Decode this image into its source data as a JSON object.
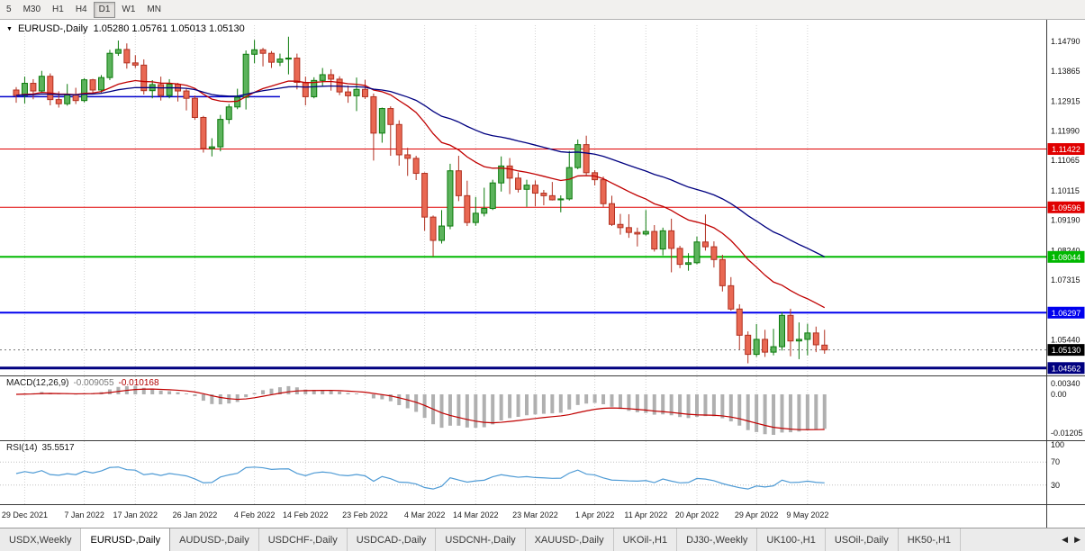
{
  "toolbar": {
    "timeframes": [
      {
        "label": "5",
        "active": false
      },
      {
        "label": "M30",
        "active": false
      },
      {
        "label": "H1",
        "active": false
      },
      {
        "label": "H4",
        "active": false
      },
      {
        "label": "D1",
        "active": true
      },
      {
        "label": "W1",
        "active": false
      },
      {
        "label": "MN",
        "active": false
      }
    ]
  },
  "chart_header": {
    "dropdown_icon": "▼",
    "symbol_label": "EURUSD-,Daily",
    "ohlc": "1.05280 1.05761 1.05013 1.05130"
  },
  "indicators": {
    "macd": {
      "label": "MACD(12,26,9)",
      "value_main": "-0.009055",
      "value_signal": "-0.010168"
    },
    "rsi": {
      "label": "RSI(14)",
      "value": "35.5517"
    }
  },
  "colors": {
    "up_fill": "#5cb35c",
    "up_border": "#0c7a0c",
    "down_fill": "#e96853",
    "down_border": "#b03020",
    "grid": "#d4d4d4",
    "macd_hist": "#b0b0b0",
    "macd_signal": "#c00000",
    "rsi_line": "#4f9bd5",
    "rsi_level": "#c0c0c0"
  },
  "chart_data": {
    "type": "candlestick",
    "symbol": "EURUSD-",
    "timeframe": "Daily",
    "ohlc_display": {
      "open": "1.05280",
      "high": "1.05761",
      "low": "1.05013",
      "close": "1.05130"
    },
    "ylim": [
      1.0444,
      1.153
    ],
    "candles": [
      [
        1.1327,
        1.1336,
        1.1287,
        1.131
      ],
      [
        1.131,
        1.1369,
        1.1285,
        1.1348
      ],
      [
        1.1348,
        1.1361,
        1.1298,
        1.1324
      ],
      [
        1.1324,
        1.1387,
        1.1318,
        1.137
      ],
      [
        1.137,
        1.1379,
        1.1279,
        1.1297
      ],
      [
        1.1297,
        1.1323,
        1.1272,
        1.1284
      ],
      [
        1.1284,
        1.1346,
        1.1278,
        1.1312
      ],
      [
        1.1312,
        1.1334,
        1.1283,
        1.1294
      ],
      [
        1.1294,
        1.1364,
        1.1288,
        1.1359
      ],
      [
        1.1359,
        1.1362,
        1.1313,
        1.1327
      ],
      [
        1.1327,
        1.1374,
        1.1319,
        1.1366
      ],
      [
        1.1366,
        1.1453,
        1.1358,
        1.1442
      ],
      [
        1.1442,
        1.1482,
        1.1434,
        1.1454
      ],
      [
        1.1454,
        1.1473,
        1.1394,
        1.1412
      ],
      [
        1.1412,
        1.1436,
        1.1396,
        1.1405
      ],
      [
        1.1405,
        1.1423,
        1.1313,
        1.1325
      ],
      [
        1.1325,
        1.1358,
        1.1301,
        1.1344
      ],
      [
        1.1344,
        1.1369,
        1.1294,
        1.131
      ],
      [
        1.131,
        1.1361,
        1.1301,
        1.1345
      ],
      [
        1.1345,
        1.1349,
        1.1291,
        1.1324
      ],
      [
        1.1324,
        1.1331,
        1.1263,
        1.1301
      ],
      [
        1.1301,
        1.131,
        1.1234,
        1.1241
      ],
      [
        1.1241,
        1.1246,
        1.1131,
        1.1144
      ],
      [
        1.1144,
        1.1176,
        1.1119,
        1.1149
      ],
      [
        1.1149,
        1.1249,
        1.1135,
        1.1235
      ],
      [
        1.1235,
        1.1283,
        1.1221,
        1.1274
      ],
      [
        1.1274,
        1.1331,
        1.1267,
        1.1304
      ],
      [
        1.1304,
        1.1451,
        1.1266,
        1.1439
      ],
      [
        1.1439,
        1.1484,
        1.1411,
        1.1453
      ],
      [
        1.1453,
        1.1459,
        1.1401,
        1.1442
      ],
      [
        1.1442,
        1.1449,
        1.1396,
        1.1414
      ],
      [
        1.1414,
        1.1441,
        1.1402,
        1.1424
      ],
      [
        1.1424,
        1.1494,
        1.1376,
        1.1427
      ],
      [
        1.1427,
        1.1441,
        1.1329,
        1.1351
      ],
      [
        1.1351,
        1.1369,
        1.1279,
        1.1306
      ],
      [
        1.1306,
        1.1367,
        1.1301,
        1.1357
      ],
      [
        1.1357,
        1.1396,
        1.1339,
        1.1375
      ],
      [
        1.1375,
        1.1392,
        1.1325,
        1.1361
      ],
      [
        1.1361,
        1.137,
        1.1311,
        1.1321
      ],
      [
        1.1321,
        1.1341,
        1.1287,
        1.1309
      ],
      [
        1.1309,
        1.1366,
        1.1261,
        1.1329
      ],
      [
        1.1329,
        1.1359,
        1.1299,
        1.1306
      ],
      [
        1.1306,
        1.1316,
        1.1106,
        1.1192
      ],
      [
        1.1192,
        1.1272,
        1.1162,
        1.1269
      ],
      [
        1.1269,
        1.1276,
        1.1121,
        1.1219
      ],
      [
        1.1219,
        1.1232,
        1.109,
        1.1124
      ],
      [
        1.1124,
        1.1146,
        1.1058,
        1.1113
      ],
      [
        1.1113,
        1.1121,
        1.1045,
        1.1066
      ],
      [
        1.1066,
        1.1069,
        1.0886,
        1.0929
      ],
      [
        1.0929,
        1.0934,
        1.0806,
        1.0856
      ],
      [
        1.0856,
        1.0951,
        1.0846,
        1.0901
      ],
      [
        1.0901,
        1.1096,
        1.0891,
        1.1074
      ],
      [
        1.1074,
        1.1121,
        1.0979,
        1.0996
      ],
      [
        1.0996,
        1.1043,
        1.0901,
        1.0912
      ],
      [
        1.0912,
        1.0992,
        1.0902,
        1.0941
      ],
      [
        1.0941,
        1.1021,
        1.0931,
        1.0956
      ],
      [
        1.0956,
        1.1046,
        1.0951,
        1.1036
      ],
      [
        1.1036,
        1.1119,
        1.1009,
        1.1089
      ],
      [
        1.1089,
        1.1114,
        1.1001,
        1.1051
      ],
      [
        1.1051,
        1.1069,
        1.1006,
        1.1016
      ],
      [
        1.1016,
        1.1046,
        1.0961,
        1.1029
      ],
      [
        1.1029,
        1.1044,
        1.0963,
        1.1004
      ],
      [
        1.1004,
        1.1014,
        1.0966,
        1.0996
      ],
      [
        1.0996,
        1.1039,
        1.0981,
        1.0983
      ],
      [
        1.0983,
        1.0997,
        1.0944,
        1.0986
      ],
      [
        1.0986,
        1.1136,
        1.0981,
        1.1084
      ],
      [
        1.1084,
        1.1172,
        1.1079,
        1.1156
      ],
      [
        1.1156,
        1.1184,
        1.1061,
        1.1068
      ],
      [
        1.1068,
        1.1076,
        1.1028,
        1.1046
      ],
      [
        1.1046,
        1.1056,
        1.0961,
        1.0971
      ],
      [
        1.0971,
        1.0996,
        1.0901,
        1.0906
      ],
      [
        1.0906,
        1.0939,
        1.0874,
        1.0896
      ],
      [
        1.0896,
        1.0938,
        1.0864,
        1.0881
      ],
      [
        1.0881,
        1.0896,
        1.0837,
        1.0876
      ],
      [
        1.0876,
        1.0951,
        1.0871,
        1.0884
      ],
      [
        1.0884,
        1.0904,
        1.0821,
        1.0829
      ],
      [
        1.0829,
        1.0896,
        1.0809,
        1.0886
      ],
      [
        1.0886,
        1.0924,
        1.0756,
        1.0831
      ],
      [
        1.0831,
        1.0839,
        1.0769,
        1.0781
      ],
      [
        1.0781,
        1.0816,
        1.0761,
        1.0786
      ],
      [
        1.0786,
        1.0868,
        1.0781,
        1.0851
      ],
      [
        1.0851,
        1.0937,
        1.0824,
        1.0836
      ],
      [
        1.0836,
        1.0853,
        1.0771,
        1.0796
      ],
      [
        1.0796,
        1.0811,
        1.0696,
        1.0714
      ],
      [
        1.0714,
        1.0741,
        1.0636,
        1.0641
      ],
      [
        1.0641,
        1.0656,
        1.0514,
        1.0559
      ],
      [
        1.0559,
        1.0571,
        1.0471,
        1.0499
      ],
      [
        1.0499,
        1.0594,
        1.0491,
        1.0546
      ],
      [
        1.0546,
        1.0576,
        1.0491,
        1.0506
      ],
      [
        1.0506,
        1.0579,
        1.0496,
        1.0523
      ],
      [
        1.0523,
        1.0631,
        1.0511,
        1.0621
      ],
      [
        1.0621,
        1.0642,
        1.0493,
        1.0541
      ],
      [
        1.0541,
        1.0599,
        1.0484,
        1.0546
      ],
      [
        1.0546,
        1.0595,
        1.0496,
        1.0566
      ],
      [
        1.0566,
        1.0586,
        1.0506,
        1.0529
      ],
      [
        1.0528,
        1.0576,
        1.0501,
        1.0513
      ]
    ],
    "date_ticks": [
      {
        "index": 1,
        "label": "29 Dec 2021"
      },
      {
        "index": 8,
        "label": "7 Jan 2022"
      },
      {
        "index": 14,
        "label": "17 Jan 2022"
      },
      {
        "index": 21,
        "label": "26 Jan 2022"
      },
      {
        "index": 28,
        "label": "4 Feb 2022"
      },
      {
        "index": 34,
        "label": "14 Feb 2022"
      },
      {
        "index": 41,
        "label": "23 Feb 2022"
      },
      {
        "index": 48,
        "label": "4 Mar 2022"
      },
      {
        "index": 54,
        "label": "14 Mar 2022"
      },
      {
        "index": 61,
        "label": "23 Mar 2022"
      },
      {
        "index": 68,
        "label": "1 Apr 2022"
      },
      {
        "index": 74,
        "label": "11 Apr 2022"
      },
      {
        "index": 80,
        "label": "20 Apr 2022"
      },
      {
        "index": 87,
        "label": "29 Apr 2022"
      },
      {
        "index": 93,
        "label": "9 May 2022"
      }
    ],
    "moving_averages": [
      {
        "type": "ema",
        "period": 20,
        "color": "#c00000"
      },
      {
        "type": "ema",
        "period": 45,
        "color": "#000080"
      }
    ],
    "hlines": [
      {
        "price": 1.11422,
        "label": "1.11422",
        "color": "#e00000",
        "width": 1
      },
      {
        "price": 1.09596,
        "label": "1.09596",
        "color": "#e00000",
        "width": 1
      },
      {
        "price": 1.08044,
        "label": "1.08044",
        "color": "#00b800",
        "width": 2
      },
      {
        "price": 1.06297,
        "label": "1.06297",
        "color": "#0000ee",
        "width": 2
      },
      {
        "price": 1.04562,
        "label": "1.04562",
        "color": "#000080",
        "width": 3
      }
    ],
    "segment": {
      "price": 1.1306,
      "from_index": 0,
      "to_index": 31,
      "color": "#0000cc",
      "width": 1.5
    },
    "current_price": {
      "price": 1.0513,
      "label": "1.05130",
      "badge_color": "#000000"
    },
    "price_ticks": [
      "1.14790",
      "1.13865",
      "1.12915",
      "1.11990",
      "1.11065",
      "1.10115",
      "1.09190",
      "1.08240",
      "1.07315",
      "1.05440"
    ],
    "macd": {
      "fast": 12,
      "slow": 26,
      "signal": 9,
      "scale_labels": [
        {
          "text": "0.00340",
          "value": 0.0034
        },
        {
          "text": "0.00",
          "value": 0
        },
        {
          "text": "-0.01205",
          "value": -0.01205
        }
      ]
    },
    "rsi": {
      "period": 14,
      "levels": [
        100,
        70,
        30
      ]
    }
  },
  "tabs": {
    "items": [
      {
        "label": "USDX,Weekly",
        "active": false
      },
      {
        "label": "EURUSD-,Daily",
        "active": true
      },
      {
        "label": "AUDUSD-,Daily",
        "active": false
      },
      {
        "label": "USDCHF-,Daily",
        "active": false
      },
      {
        "label": "USDCAD-,Daily",
        "active": false
      },
      {
        "label": "USDCNH-,Daily",
        "active": false
      },
      {
        "label": "XAUUSD-,Daily",
        "active": false
      },
      {
        "label": "UKOil-,H1",
        "active": false
      },
      {
        "label": "DJ30-,Weekly",
        "active": false
      },
      {
        "label": "UK100-,H1",
        "active": false
      },
      {
        "label": "USOil-,Daily",
        "active": false
      },
      {
        "label": "HK50-,H1",
        "active": false
      }
    ],
    "scroll_left": "◀",
    "scroll_right": "▶"
  }
}
